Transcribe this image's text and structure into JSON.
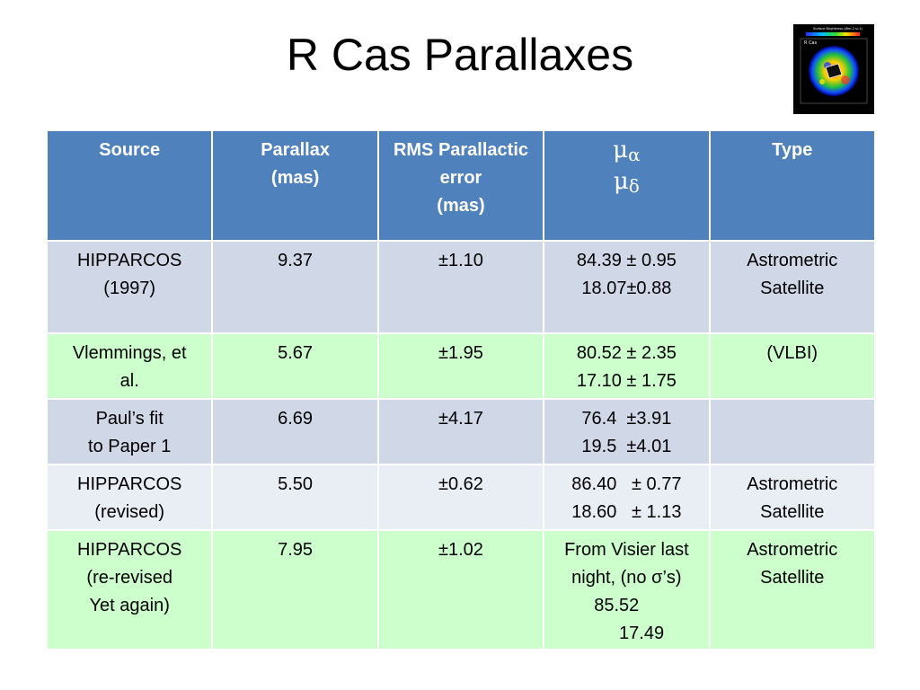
{
  "title": "R Cas Parallaxes",
  "image": {
    "name": "surface-brightness-map",
    "header_text": "Surface Brightness (Wm-2 sr-1)",
    "label": "R Cas"
  },
  "table": {
    "headers": {
      "source": "Source",
      "parallax": [
        "Parallax",
        "(mas)"
      ],
      "rms": [
        "RMS Parallactic",
        "error",
        "(mas)"
      ],
      "mu_symbol": "μ",
      "mu_alpha_sub": "α",
      "mu_delta_sub": "δ",
      "type": "Type"
    },
    "rows": [
      {
        "source": [
          "HIPPARCOS",
          "(1997)"
        ],
        "parallax": "9.37",
        "rms": "±1.10",
        "mu": [
          "84.39 ± 0.95",
          "18.07±0.88"
        ],
        "type": [
          "Astrometric",
          "Satellite"
        ]
      },
      {
        "source": [
          "Vlemmings, et",
          "al."
        ],
        "parallax": "5.67",
        "rms": "±1.95",
        "mu": [
          "80.52 ± 2.35",
          "17.10 ± 1.75"
        ],
        "type": [
          "(VLBI)"
        ]
      },
      {
        "source": [
          "Paul’s fit",
          "to Paper 1"
        ],
        "parallax": "6.69",
        "rms": "±4.17",
        "mu": [
          "76.4  ±3.91",
          "19.5  ±4.01"
        ],
        "type": []
      },
      {
        "source": [
          "HIPPARCOS",
          "(revised)"
        ],
        "parallax": "5.50",
        "rms": "±0.62",
        "mu": [
          "86.40   ± 0.77",
          "18.60   ± 1.13"
        ],
        "type": [
          "Astrometric",
          "Satellite"
        ]
      },
      {
        "source": [
          "HIPPARCOS",
          "(re-revised",
          "Yet again)"
        ],
        "parallax": "7.95",
        "rms": "±1.02",
        "mu": [
          "From Visier last",
          "night, (no σ’s)",
          "85.52    ",
          "      17.49"
        ],
        "type": [
          "Astrometric",
          "Satellite"
        ]
      }
    ]
  },
  "colors": {
    "header_bg": "#4f81bd",
    "row_blue": "#d0d8e8",
    "row_green": "#ccffcc",
    "row_light": "#e9edf4"
  }
}
